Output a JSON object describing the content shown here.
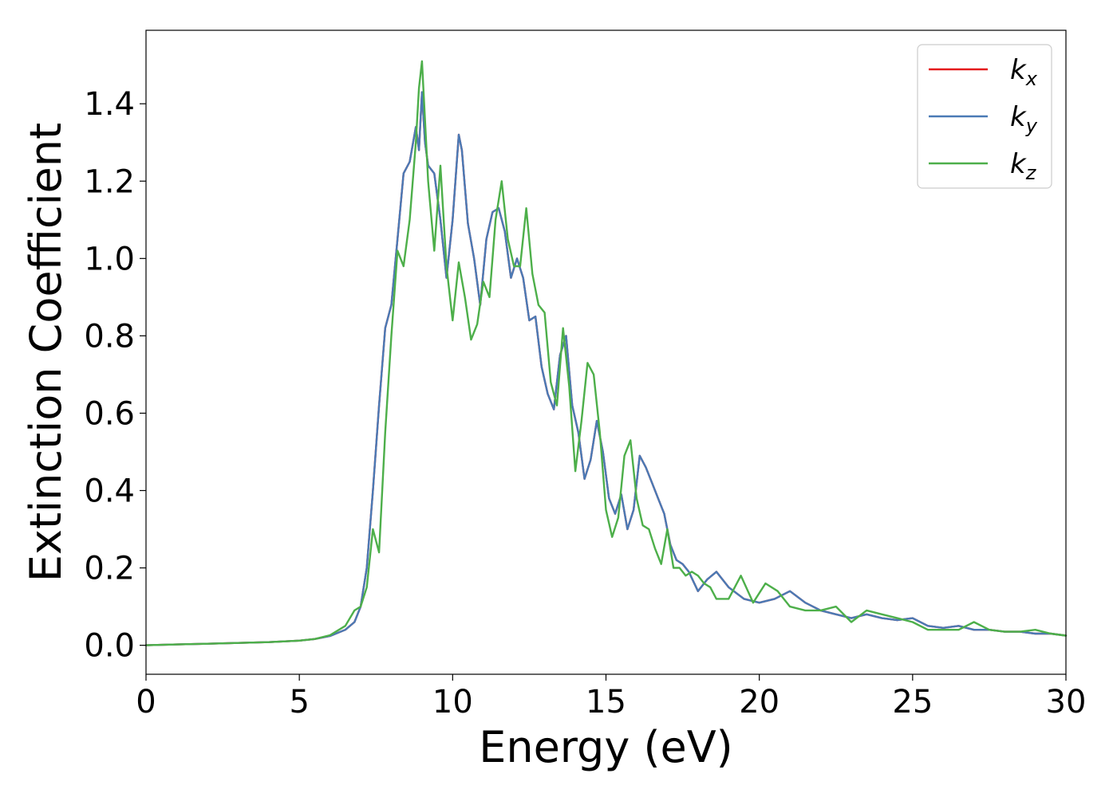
{
  "chart_data": {
    "type": "line",
    "title": "",
    "xlabel": "Energy (eV)",
    "ylabel": "Extinction Coefficient",
    "xlim": [
      0,
      30
    ],
    "ylim": [
      -0.075,
      1.59
    ],
    "xticks": [
      0,
      5,
      10,
      15,
      20,
      25,
      30
    ],
    "xtick_labels": [
      "0",
      "5",
      "10",
      "15",
      "20",
      "25",
      "30"
    ],
    "yticks": [
      0.0,
      0.2,
      0.4,
      0.6,
      0.8,
      1.0,
      1.2,
      1.4
    ],
    "ytick_labels": [
      "0.0",
      "0.2",
      "0.4",
      "0.6",
      "0.8",
      "1.0",
      "1.2",
      "1.4"
    ],
    "grid": false,
    "legend_position": "top-right",
    "series": [
      {
        "name": "k",
        "subscript": "x",
        "color": "#e41a1c",
        "x": [
          0,
          1,
          2,
          3,
          4,
          5,
          5.5,
          6,
          6.5,
          6.8,
          7.0,
          7.2,
          7.4,
          7.6,
          7.8,
          8.0,
          8.2,
          8.4,
          8.6,
          8.8,
          8.9,
          9.0,
          9.1,
          9.2,
          9.4,
          9.6,
          9.8,
          10.0,
          10.2,
          10.3,
          10.5,
          10.7,
          10.9,
          11.1,
          11.3,
          11.5,
          11.7,
          11.9,
          12.1,
          12.3,
          12.5,
          12.7,
          12.9,
          13.1,
          13.3,
          13.5,
          13.7,
          13.9,
          14.1,
          14.3,
          14.5,
          14.7,
          14.9,
          15.1,
          15.3,
          15.5,
          15.7,
          15.9,
          16.1,
          16.3,
          16.5,
          16.7,
          16.9,
          17.1,
          17.3,
          17.5,
          17.7,
          18.0,
          18.3,
          18.6,
          19.0,
          19.5,
          20.0,
          20.5,
          21.0,
          21.5,
          22.0,
          22.5,
          23.0,
          23.5,
          24.0,
          24.5,
          25.0,
          25.5,
          26.0,
          26.5,
          27.0,
          27.5,
          28.0,
          28.5,
          29.0,
          29.5,
          30.0
        ],
        "values": [
          0.0,
          0.002,
          0.004,
          0.006,
          0.008,
          0.012,
          0.016,
          0.024,
          0.04,
          0.06,
          0.1,
          0.2,
          0.4,
          0.62,
          0.82,
          0.88,
          1.05,
          1.22,
          1.25,
          1.34,
          1.28,
          1.43,
          1.3,
          1.24,
          1.22,
          1.1,
          0.95,
          1.1,
          1.32,
          1.28,
          1.09,
          1.0,
          0.88,
          1.05,
          1.12,
          1.13,
          1.07,
          0.95,
          1.0,
          0.95,
          0.84,
          0.85,
          0.72,
          0.65,
          0.61,
          0.75,
          0.8,
          0.62,
          0.55,
          0.43,
          0.48,
          0.58,
          0.5,
          0.38,
          0.34,
          0.39,
          0.3,
          0.35,
          0.49,
          0.46,
          0.42,
          0.38,
          0.34,
          0.26,
          0.22,
          0.21,
          0.19,
          0.14,
          0.17,
          0.19,
          0.15,
          0.12,
          0.11,
          0.12,
          0.14,
          0.11,
          0.09,
          0.08,
          0.07,
          0.08,
          0.07,
          0.065,
          0.07,
          0.05,
          0.045,
          0.05,
          0.04,
          0.04,
          0.035,
          0.035,
          0.03,
          0.03,
          0.025
        ]
      },
      {
        "name": "k",
        "subscript": "y",
        "color": "#4a7ab5",
        "x": [
          0,
          1,
          2,
          3,
          4,
          5,
          5.5,
          6,
          6.5,
          6.8,
          7.0,
          7.2,
          7.4,
          7.6,
          7.8,
          8.0,
          8.2,
          8.4,
          8.6,
          8.8,
          8.9,
          9.0,
          9.1,
          9.2,
          9.4,
          9.6,
          9.8,
          10.0,
          10.2,
          10.3,
          10.5,
          10.7,
          10.9,
          11.1,
          11.3,
          11.5,
          11.7,
          11.9,
          12.1,
          12.3,
          12.5,
          12.7,
          12.9,
          13.1,
          13.3,
          13.5,
          13.7,
          13.9,
          14.1,
          14.3,
          14.5,
          14.7,
          14.9,
          15.1,
          15.3,
          15.5,
          15.7,
          15.9,
          16.1,
          16.3,
          16.5,
          16.7,
          16.9,
          17.1,
          17.3,
          17.5,
          17.7,
          18.0,
          18.3,
          18.6,
          19.0,
          19.5,
          20.0,
          20.5,
          21.0,
          21.5,
          22.0,
          22.5,
          23.0,
          23.5,
          24.0,
          24.5,
          25.0,
          25.5,
          26.0,
          26.5,
          27.0,
          27.5,
          28.0,
          28.5,
          29.0,
          29.5,
          30.0
        ],
        "values": [
          0.0,
          0.002,
          0.004,
          0.006,
          0.008,
          0.012,
          0.016,
          0.024,
          0.04,
          0.06,
          0.1,
          0.2,
          0.4,
          0.62,
          0.82,
          0.88,
          1.05,
          1.22,
          1.25,
          1.34,
          1.28,
          1.43,
          1.3,
          1.24,
          1.22,
          1.1,
          0.95,
          1.1,
          1.32,
          1.28,
          1.09,
          1.0,
          0.88,
          1.05,
          1.12,
          1.13,
          1.07,
          0.95,
          1.0,
          0.95,
          0.84,
          0.85,
          0.72,
          0.65,
          0.61,
          0.75,
          0.8,
          0.62,
          0.55,
          0.43,
          0.48,
          0.58,
          0.5,
          0.38,
          0.34,
          0.39,
          0.3,
          0.35,
          0.49,
          0.46,
          0.42,
          0.38,
          0.34,
          0.26,
          0.22,
          0.21,
          0.19,
          0.14,
          0.17,
          0.19,
          0.15,
          0.12,
          0.11,
          0.12,
          0.14,
          0.11,
          0.09,
          0.08,
          0.07,
          0.08,
          0.07,
          0.065,
          0.07,
          0.05,
          0.045,
          0.05,
          0.04,
          0.04,
          0.035,
          0.035,
          0.03,
          0.03,
          0.025
        ]
      },
      {
        "name": "k",
        "subscript": "z",
        "color": "#4daf4a",
        "x": [
          0,
          1,
          2,
          3,
          4,
          5,
          5.5,
          6,
          6.5,
          6.8,
          7.0,
          7.2,
          7.4,
          7.6,
          7.8,
          8.0,
          8.2,
          8.4,
          8.6,
          8.8,
          8.9,
          9.0,
          9.2,
          9.4,
          9.6,
          9.8,
          10.0,
          10.2,
          10.4,
          10.6,
          10.8,
          11.0,
          11.2,
          11.4,
          11.6,
          11.8,
          12.0,
          12.2,
          12.4,
          12.6,
          12.8,
          13.0,
          13.2,
          13.4,
          13.6,
          13.8,
          14.0,
          14.2,
          14.4,
          14.6,
          14.8,
          15.0,
          15.2,
          15.4,
          15.6,
          15.8,
          16.0,
          16.2,
          16.4,
          16.6,
          16.8,
          17.0,
          17.2,
          17.4,
          17.6,
          17.8,
          18.0,
          18.2,
          18.4,
          18.6,
          19.0,
          19.4,
          19.8,
          20.2,
          20.6,
          21.0,
          21.5,
          22.0,
          22.5,
          23.0,
          23.5,
          24.0,
          24.5,
          25.0,
          25.5,
          26.0,
          26.5,
          27.0,
          27.5,
          28.0,
          28.5,
          29.0,
          29.5,
          30.0
        ],
        "values": [
          0.0,
          0.002,
          0.004,
          0.006,
          0.008,
          0.012,
          0.016,
          0.026,
          0.05,
          0.09,
          0.1,
          0.15,
          0.3,
          0.24,
          0.55,
          0.8,
          1.02,
          0.98,
          1.1,
          1.3,
          1.44,
          1.51,
          1.2,
          1.02,
          1.24,
          0.98,
          0.84,
          0.99,
          0.9,
          0.79,
          0.83,
          0.94,
          0.9,
          1.1,
          1.2,
          1.05,
          0.98,
          0.98,
          1.13,
          0.96,
          0.88,
          0.86,
          0.68,
          0.62,
          0.82,
          0.67,
          0.45,
          0.58,
          0.73,
          0.7,
          0.55,
          0.35,
          0.28,
          0.33,
          0.49,
          0.53,
          0.38,
          0.31,
          0.3,
          0.25,
          0.21,
          0.3,
          0.2,
          0.2,
          0.18,
          0.19,
          0.18,
          0.16,
          0.15,
          0.12,
          0.12,
          0.18,
          0.11,
          0.16,
          0.14,
          0.1,
          0.09,
          0.09,
          0.1,
          0.06,
          0.09,
          0.08,
          0.07,
          0.06,
          0.04,
          0.04,
          0.04,
          0.06,
          0.04,
          0.035,
          0.035,
          0.04,
          0.03,
          0.025
        ]
      }
    ]
  }
}
